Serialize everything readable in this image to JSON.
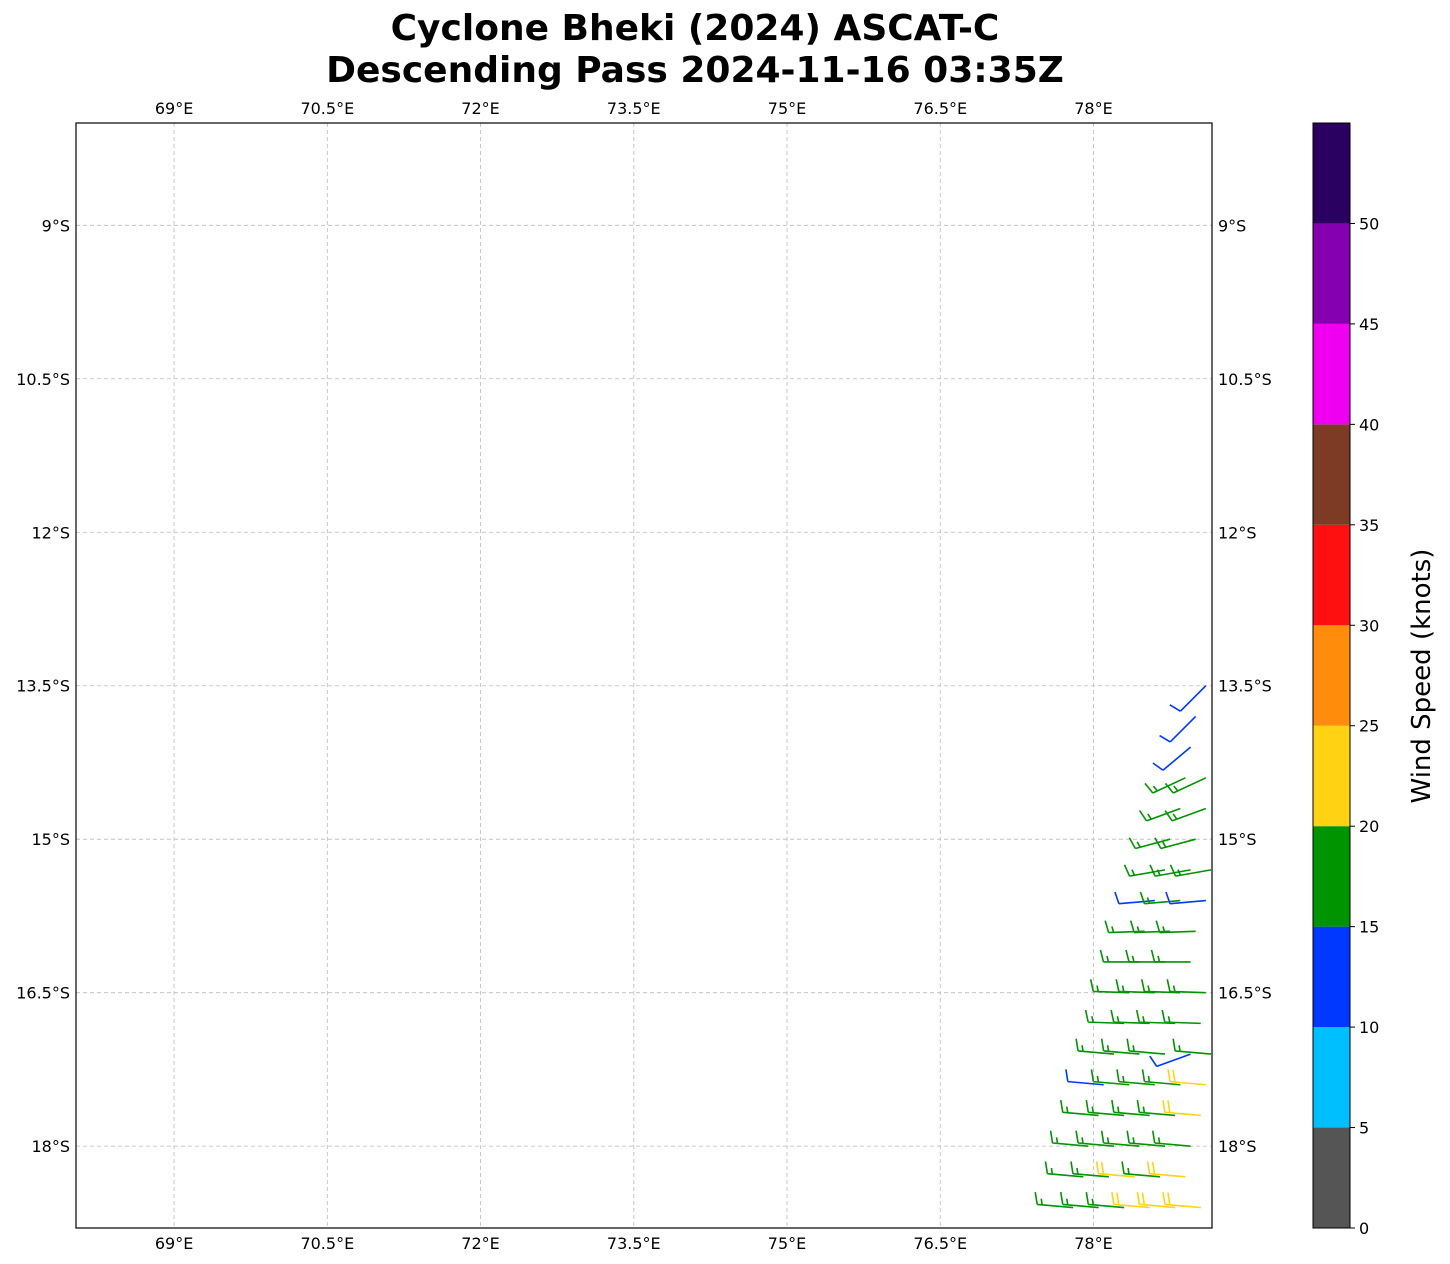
{
  "chart_data": {
    "type": "barbs",
    "title": [
      "Cyclone Bheki (2024) ASCAT-C",
      "Descending Pass 2024-11-16 03:35Z"
    ],
    "xlim": [
      68.04,
      79.16
    ],
    "ylim": [
      -18.8,
      -8.0
    ],
    "xticks": [
      {
        "value": 69,
        "label": "69°E"
      },
      {
        "value": 70.5,
        "label": "70.5°E"
      },
      {
        "value": 72,
        "label": "72°E"
      },
      {
        "value": 73.5,
        "label": "73.5°E"
      },
      {
        "value": 75,
        "label": "75°E"
      },
      {
        "value": 76.5,
        "label": "76.5°E"
      },
      {
        "value": 78,
        "label": "78°E"
      }
    ],
    "yticks": [
      {
        "value": -9,
        "label": "9°S"
      },
      {
        "value": -10.5,
        "label": "10.5°S"
      },
      {
        "value": -12,
        "label": "12°S"
      },
      {
        "value": -13.5,
        "label": "13.5°S"
      },
      {
        "value": -15,
        "label": "15°S"
      },
      {
        "value": -16.5,
        "label": "16.5°S"
      },
      {
        "value": -18,
        "label": "18°S"
      }
    ],
    "grid": true,
    "barbs": {
      "lon": [
        79.1,
        79.0,
        78.95,
        78.9,
        79.1,
        78.85,
        79.1,
        78.75,
        79.0,
        78.7,
        78.95,
        79.15,
        78.6,
        78.85,
        79.1,
        78.5,
        78.75,
        79.0,
        78.45,
        78.7,
        78.95,
        78.35,
        78.6,
        78.85,
        79.1,
        78.3,
        78.55,
        78.8,
        79.05,
        78.2,
        78.45,
        78.7,
        78.95,
        79.15,
        78.1,
        78.35,
        78.6,
        78.85,
        79.1,
        78.05,
        78.3,
        78.55,
        78.8,
        79.05,
        77.95,
        78.2,
        78.45,
        78.7,
        78.95,
        77.9,
        78.15,
        78.4,
        78.65,
        78.9,
        77.8,
        78.05,
        78.3,
        78.55,
        78.8,
        79.05
      ],
      "lat": [
        -13.5,
        -13.8,
        -14.1,
        -14.4,
        -14.4,
        -14.7,
        -14.7,
        -15.0,
        -15.0,
        -15.3,
        -15.3,
        -15.3,
        -15.6,
        -15.6,
        -15.6,
        -15.9,
        -15.9,
        -15.9,
        -16.2,
        -16.2,
        -16.2,
        -16.5,
        -16.5,
        -16.5,
        -16.5,
        -16.8,
        -16.8,
        -16.8,
        -16.8,
        -17.1,
        -17.1,
        -17.1,
        -17.1,
        -17.1,
        -17.4,
        -17.4,
        -17.4,
        -17.4,
        -17.4,
        -17.7,
        -17.7,
        -17.7,
        -17.7,
        -17.7,
        -18.0,
        -18.0,
        -18.0,
        -18.0,
        -18.0,
        -18.3,
        -18.3,
        -18.3,
        -18.3,
        -18.3,
        -18.6,
        -18.6,
        -18.6,
        -18.6,
        -18.6,
        -18.6
      ],
      "speed": [
        12,
        12,
        12,
        17,
        17,
        17,
        17,
        17,
        17,
        17,
        17,
        17,
        12,
        17,
        12,
        17,
        17,
        17,
        17,
        17,
        17,
        17,
        17,
        17,
        17,
        17,
        17,
        17,
        17,
        17,
        17,
        17,
        12,
        17,
        12,
        17,
        17,
        17,
        22,
        17,
        17,
        17,
        17,
        22,
        17,
        17,
        17,
        17,
        17,
        17,
        17,
        22,
        17,
        22,
        17,
        17,
        17,
        22,
        22,
        22
      ],
      "direction": [
        225,
        225,
        230,
        245,
        245,
        250,
        250,
        255,
        255,
        260,
        260,
        260,
        265,
        265,
        265,
        268,
        268,
        268,
        270,
        270,
        270,
        272,
        272,
        272,
        272,
        272,
        272,
        272,
        272,
        275,
        275,
        275,
        250,
        275,
        275,
        275,
        275,
        275,
        275,
        275,
        275,
        275,
        275,
        275,
        275,
        275,
        275,
        275,
        275,
        275,
        275,
        275,
        275,
        275,
        275,
        275,
        275,
        275,
        275,
        275
      ]
    },
    "colorbar": {
      "label": "Wind Speed (knots)",
      "boundaries": [
        0,
        5,
        10,
        15,
        20,
        25,
        30,
        35,
        40,
        45,
        50,
        55
      ],
      "colors": [
        "#555555",
        "#00bfff",
        "#0038ff",
        "#009400",
        "#ffd313",
        "#ff8c0a",
        "#ff1010",
        "#7d3b26",
        "#f000f0",
        "#8500b0",
        "#2a0060"
      ],
      "ticks": [
        0,
        5,
        10,
        15,
        20,
        25,
        30,
        35,
        40,
        45,
        50
      ]
    }
  }
}
